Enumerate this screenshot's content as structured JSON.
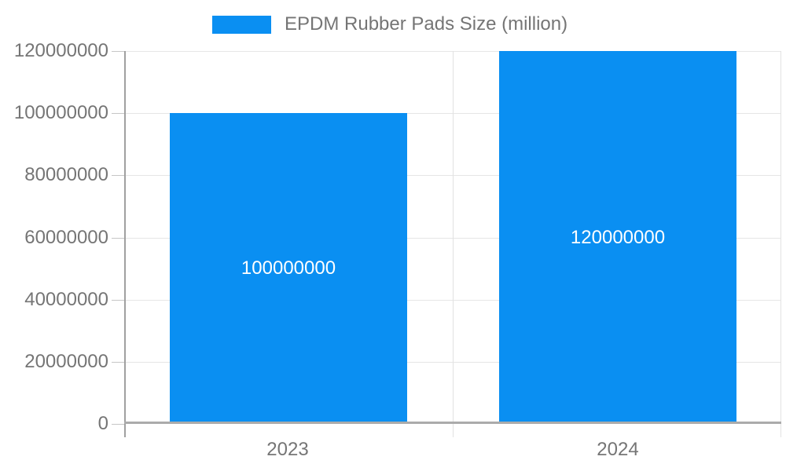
{
  "legend": {
    "label": "EPDM Rubber Pads Size (million)"
  },
  "chart_data": {
    "type": "bar",
    "title": "EPDM Rubber Pads Size (million)",
    "categories": [
      "2023",
      "2024"
    ],
    "values": [
      100000000,
      120000000
    ],
    "value_labels": [
      "100000000",
      "120000000"
    ],
    "yticks": [
      0,
      20000000,
      40000000,
      60000000,
      80000000,
      100000000,
      120000000
    ],
    "ytick_labels": [
      "0",
      "20000000",
      "40000000",
      "60000000",
      "80000000",
      "100000000",
      "120000000"
    ],
    "ylim": [
      0,
      120000000
    ],
    "xlabel": "",
    "ylabel": "",
    "grid": "horizontal",
    "legend_position": "top-center",
    "colors": {
      "bar": "#0a8ff2",
      "axis_label": "#757575",
      "value_label": "#ffffff",
      "gridline": "#e6e6e6",
      "axis_line": "#a0a0a0"
    }
  }
}
